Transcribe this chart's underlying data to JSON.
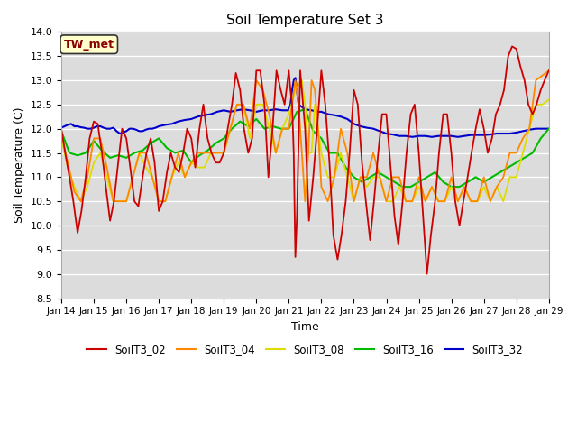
{
  "title": "Soil Temperature Set 3",
  "xlabel": "Time",
  "ylabel": "Soil Temperature (C)",
  "ylim": [
    8.5,
    14.0
  ],
  "xlim": [
    0,
    15
  ],
  "x_tick_labels": [
    "Jan 14",
    "Jan 15",
    "Jan 16",
    "Jan 17",
    "Jan 18",
    "Jan 19",
    "Jan 20",
    "Jan 21",
    "Jan 22",
    "Jan 23",
    "Jan 24",
    "Jan 25",
    "Jan 26",
    "Jan 27",
    "Jan 28",
    "Jan 29"
  ],
  "annotation": "TW_met",
  "bg_color": "#dcdcdc",
  "series_order": [
    "SoilT3_32",
    "SoilT3_16",
    "SoilT3_08",
    "SoilT3_04",
    "SoilT3_02"
  ],
  "series": {
    "SoilT3_02": {
      "color": "#cc0000",
      "lw": 1.3,
      "x": [
        0,
        0.12,
        0.25,
        0.37,
        0.5,
        0.62,
        0.75,
        0.87,
        1.0,
        1.12,
        1.25,
        1.37,
        1.5,
        1.62,
        1.75,
        1.87,
        2.0,
        2.12,
        2.25,
        2.37,
        2.5,
        2.62,
        2.75,
        2.87,
        3.0,
        3.12,
        3.25,
        3.37,
        3.5,
        3.62,
        3.75,
        3.87,
        4.0,
        4.12,
        4.25,
        4.37,
        4.5,
        4.62,
        4.75,
        4.87,
        5.0,
        5.12,
        5.25,
        5.37,
        5.5,
        5.62,
        5.75,
        5.87,
        6.0,
        6.12,
        6.25,
        6.37,
        6.5,
        6.62,
        6.75,
        6.87,
        7.0,
        7.05,
        7.1,
        7.15,
        7.2,
        7.25,
        7.35,
        7.5,
        7.62,
        7.75,
        7.87,
        8.0,
        8.12,
        8.25,
        8.37,
        8.5,
        8.62,
        8.75,
        8.87,
        9.0,
        9.12,
        9.25,
        9.37,
        9.5,
        9.62,
        9.75,
        9.87,
        10.0,
        10.12,
        10.25,
        10.37,
        10.5,
        10.62,
        10.75,
        10.87,
        11.0,
        11.12,
        11.25,
        11.37,
        11.5,
        11.62,
        11.75,
        11.87,
        12.0,
        12.12,
        12.25,
        12.37,
        12.5,
        12.62,
        12.75,
        12.87,
        13.0,
        13.12,
        13.25,
        13.37,
        13.5,
        13.62,
        13.75,
        13.87,
        14.0,
        14.12,
        14.25,
        14.37,
        14.5,
        14.62,
        14.75,
        14.87,
        15.0
      ],
      "y": [
        12.0,
        11.5,
        11.0,
        10.5,
        9.85,
        10.3,
        11.0,
        11.8,
        12.15,
        12.1,
        11.5,
        10.8,
        10.1,
        10.5,
        11.3,
        12.0,
        11.8,
        11.2,
        10.5,
        10.4,
        11.0,
        11.5,
        11.8,
        11.3,
        10.3,
        10.5,
        11.1,
        11.5,
        11.2,
        11.1,
        11.5,
        12.0,
        11.8,
        11.2,
        12.0,
        12.5,
        11.8,
        11.5,
        11.3,
        11.3,
        11.5,
        12.0,
        12.5,
        13.15,
        12.8,
        12.0,
        11.5,
        11.8,
        13.2,
        13.2,
        12.5,
        11.0,
        12.0,
        13.2,
        12.8,
        12.5,
        13.2,
        12.8,
        12.5,
        11.5,
        9.35,
        10.2,
        13.2,
        12.0,
        10.1,
        11.0,
        12.0,
        13.2,
        12.5,
        11.3,
        9.8,
        9.3,
        9.8,
        10.5,
        11.5,
        12.8,
        12.5,
        11.3,
        10.5,
        9.7,
        10.5,
        11.5,
        12.3,
        12.3,
        11.3,
        10.2,
        9.6,
        10.5,
        11.5,
        12.3,
        12.5,
        11.5,
        10.3,
        9.0,
        9.8,
        10.5,
        11.5,
        12.3,
        12.3,
        11.5,
        10.5,
        10.0,
        10.5,
        11.0,
        11.5,
        12.0,
        12.4,
        12.0,
        11.5,
        11.8,
        12.3,
        12.5,
        12.8,
        13.5,
        13.7,
        13.65,
        13.3,
        13.0,
        12.5,
        12.3,
        12.5,
        12.8,
        13.0,
        13.2
      ]
    },
    "SoilT3_04": {
      "color": "#ff8800",
      "lw": 1.3,
      "x": [
        0,
        0.2,
        0.4,
        0.6,
        0.8,
        1.0,
        1.2,
        1.4,
        1.6,
        1.8,
        2.0,
        2.2,
        2.4,
        2.6,
        2.8,
        3.0,
        3.2,
        3.4,
        3.6,
        3.8,
        4.0,
        4.2,
        4.4,
        4.6,
        4.8,
        5.0,
        5.2,
        5.4,
        5.6,
        5.8,
        6.0,
        6.2,
        6.4,
        6.6,
        6.8,
        7.0,
        7.1,
        7.2,
        7.3,
        7.4,
        7.5,
        7.6,
        7.7,
        7.8,
        7.9,
        8.0,
        8.2,
        8.4,
        8.6,
        8.8,
        9.0,
        9.2,
        9.4,
        9.6,
        9.8,
        10.0,
        10.2,
        10.4,
        10.6,
        10.8,
        11.0,
        11.2,
        11.4,
        11.6,
        11.8,
        12.0,
        12.2,
        12.4,
        12.6,
        12.8,
        13.0,
        13.2,
        13.4,
        13.6,
        13.8,
        14.0,
        14.2,
        14.4,
        14.6,
        14.8,
        15.0
      ],
      "y": [
        11.9,
        11.3,
        10.7,
        10.5,
        11.0,
        11.8,
        11.8,
        11.2,
        10.5,
        10.5,
        10.5,
        11.0,
        11.5,
        11.5,
        11.0,
        10.5,
        10.5,
        11.0,
        11.5,
        11.0,
        11.3,
        11.5,
        11.5,
        11.5,
        11.5,
        11.5,
        12.0,
        12.5,
        12.5,
        12.0,
        13.0,
        12.8,
        12.3,
        11.5,
        12.0,
        12.0,
        12.5,
        13.0,
        12.5,
        11.5,
        10.5,
        11.5,
        13.0,
        12.8,
        12.0,
        10.8,
        10.5,
        11.0,
        12.0,
        11.5,
        10.5,
        11.0,
        11.0,
        11.5,
        11.0,
        10.5,
        11.0,
        11.0,
        10.5,
        10.5,
        11.0,
        10.5,
        10.8,
        10.5,
        10.5,
        11.0,
        10.5,
        10.8,
        10.5,
        10.5,
        11.0,
        10.5,
        10.8,
        11.0,
        11.5,
        11.5,
        11.8,
        12.0,
        13.0,
        13.1,
        13.2
      ]
    },
    "SoilT3_08": {
      "color": "#dddd00",
      "lw": 1.3,
      "x": [
        0,
        0.2,
        0.4,
        0.6,
        0.8,
        1.0,
        1.2,
        1.4,
        1.6,
        1.8,
        2.0,
        2.2,
        2.4,
        2.6,
        2.8,
        3.0,
        3.2,
        3.4,
        3.6,
        3.8,
        4.0,
        4.2,
        4.4,
        4.6,
        4.8,
        5.0,
        5.2,
        5.4,
        5.6,
        5.8,
        6.0,
        6.2,
        6.4,
        6.6,
        6.8,
        7.0,
        7.2,
        7.4,
        7.5,
        7.6,
        7.7,
        7.8,
        7.9,
        8.0,
        8.2,
        8.4,
        8.6,
        8.8,
        9.0,
        9.2,
        9.4,
        9.6,
        9.8,
        10.0,
        10.2,
        10.4,
        10.6,
        10.8,
        11.0,
        11.2,
        11.4,
        11.6,
        11.8,
        12.0,
        12.2,
        12.4,
        12.6,
        12.8,
        13.0,
        13.2,
        13.4,
        13.6,
        13.8,
        14.0,
        14.2,
        14.4,
        14.6,
        14.8,
        15.0
      ],
      "y": [
        11.8,
        11.2,
        10.8,
        10.5,
        10.8,
        11.3,
        11.5,
        11.0,
        10.5,
        10.5,
        10.5,
        11.0,
        11.5,
        11.2,
        11.0,
        10.5,
        10.5,
        11.0,
        11.3,
        11.0,
        11.3,
        11.2,
        11.2,
        11.5,
        11.5,
        11.5,
        12.0,
        12.5,
        12.5,
        11.8,
        12.5,
        12.5,
        12.0,
        11.5,
        12.0,
        12.3,
        12.8,
        13.0,
        12.5,
        11.5,
        11.5,
        12.5,
        12.0,
        11.5,
        11.0,
        11.0,
        11.5,
        11.0,
        10.5,
        11.0,
        10.8,
        11.0,
        11.0,
        10.5,
        10.5,
        10.8,
        10.5,
        10.5,
        10.8,
        10.5,
        10.8,
        10.5,
        10.5,
        10.8,
        10.5,
        10.8,
        10.5,
        10.5,
        10.8,
        10.5,
        10.8,
        10.5,
        11.0,
        11.0,
        11.5,
        12.0,
        12.5,
        12.5,
        12.6
      ]
    },
    "SoilT3_16": {
      "color": "#00bb00",
      "lw": 1.5,
      "x": [
        0,
        0.25,
        0.5,
        0.75,
        1.0,
        1.25,
        1.5,
        1.75,
        2.0,
        2.25,
        2.5,
        2.75,
        3.0,
        3.25,
        3.5,
        3.75,
        4.0,
        4.25,
        4.5,
        4.75,
        5.0,
        5.25,
        5.5,
        5.75,
        6.0,
        6.25,
        6.5,
        6.75,
        7.0,
        7.25,
        7.5,
        7.75,
        8.0,
        8.25,
        8.5,
        8.75,
        9.0,
        9.25,
        9.5,
        9.75,
        10.0,
        10.25,
        10.5,
        10.75,
        11.0,
        11.25,
        11.5,
        11.75,
        12.0,
        12.25,
        12.5,
        12.75,
        13.0,
        13.25,
        13.5,
        13.75,
        14.0,
        14.25,
        14.5,
        14.75,
        15.0
      ],
      "y": [
        11.95,
        11.5,
        11.45,
        11.5,
        11.75,
        11.55,
        11.4,
        11.45,
        11.4,
        11.5,
        11.55,
        11.7,
        11.8,
        11.6,
        11.5,
        11.55,
        11.3,
        11.45,
        11.55,
        11.7,
        11.8,
        12.0,
        12.15,
        12.05,
        12.2,
        12.0,
        12.05,
        12.0,
        12.0,
        12.35,
        12.4,
        11.95,
        11.8,
        11.5,
        11.5,
        11.2,
        11.0,
        10.9,
        11.0,
        11.1,
        11.0,
        10.9,
        10.8,
        10.8,
        10.9,
        11.0,
        11.1,
        10.9,
        10.8,
        10.8,
        10.9,
        11.0,
        10.9,
        11.0,
        11.1,
        11.2,
        11.3,
        11.4,
        11.5,
        11.8,
        12.0
      ]
    },
    "SoilT3_32": {
      "color": "#0000cc",
      "lw": 1.5,
      "x": [
        0,
        0.1,
        0.2,
        0.3,
        0.4,
        0.5,
        0.6,
        0.7,
        0.8,
        0.9,
        1.0,
        1.1,
        1.2,
        1.3,
        1.4,
        1.5,
        1.6,
        1.7,
        1.8,
        1.9,
        2.0,
        2.1,
        2.2,
        2.3,
        2.4,
        2.5,
        2.6,
        2.7,
        2.8,
        2.9,
        3.0,
        3.2,
        3.4,
        3.6,
        3.8,
        4.0,
        4.2,
        4.4,
        4.6,
        4.8,
        5.0,
        5.2,
        5.4,
        5.6,
        5.8,
        6.0,
        6.2,
        6.4,
        6.6,
        6.8,
        7.0,
        7.05,
        7.1,
        7.15,
        7.2,
        7.3,
        7.5,
        7.7,
        7.9,
        8.0,
        8.2,
        8.4,
        8.6,
        8.8,
        9.0,
        9.2,
        9.4,
        9.6,
        9.8,
        10.0,
        10.2,
        10.4,
        10.6,
        10.8,
        11.0,
        11.2,
        11.4,
        11.6,
        11.8,
        12.0,
        12.2,
        12.4,
        12.6,
        12.8,
        13.0,
        13.2,
        13.4,
        13.6,
        13.8,
        14.0,
        14.2,
        14.4,
        14.6,
        14.8,
        15.0
      ],
      "y": [
        12.02,
        12.05,
        12.08,
        12.1,
        12.05,
        12.05,
        12.03,
        12.02,
        12.0,
        12.0,
        12.02,
        12.05,
        12.05,
        12.02,
        12.0,
        12.0,
        12.02,
        11.95,
        11.9,
        11.92,
        11.95,
        12.0,
        12.0,
        11.98,
        11.95,
        11.95,
        11.98,
        12.0,
        12.0,
        12.02,
        12.05,
        12.08,
        12.1,
        12.15,
        12.18,
        12.2,
        12.25,
        12.28,
        12.3,
        12.35,
        12.38,
        12.35,
        12.38,
        12.4,
        12.38,
        12.35,
        12.38,
        12.38,
        12.4,
        12.38,
        12.38,
        12.5,
        12.8,
        13.0,
        13.05,
        12.5,
        12.4,
        12.38,
        12.35,
        12.35,
        12.3,
        12.28,
        12.25,
        12.2,
        12.1,
        12.05,
        12.02,
        12.0,
        11.95,
        11.9,
        11.88,
        11.85,
        11.85,
        11.83,
        11.85,
        11.85,
        11.83,
        11.85,
        11.85,
        11.85,
        11.83,
        11.85,
        11.87,
        11.87,
        11.87,
        11.88,
        11.9,
        11.9,
        11.9,
        11.92,
        11.95,
        11.98,
        12.0,
        12.0,
        12.0
      ]
    }
  }
}
